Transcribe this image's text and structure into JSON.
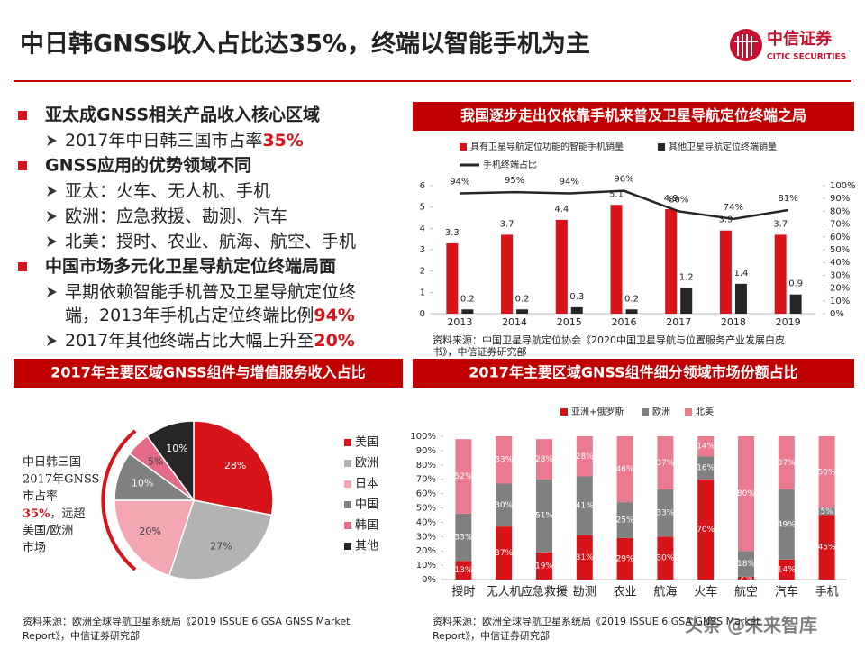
{
  "header": {
    "title": "中日韩GNSS收入占比达35%，终端以智能手机为主",
    "logo_name": "中信证券",
    "logo_en": "CITIC SECURITIES"
  },
  "bullets": [
    {
      "text": "亚太成GNSS相关产品收入核心区域",
      "sub": [
        {
          "lines": [
            "2017年中日韩三国市占率"
          ],
          "highlight": "35%"
        }
      ]
    },
    {
      "text": "GNSS应用的优势领域不同",
      "sub": [
        {
          "lines": [
            "亚太：火车、无人机、手机"
          ]
        },
        {
          "lines": [
            "欧洲：应急救援、勘测、汽车"
          ]
        },
        {
          "lines": [
            "北美：授时、农业、航海、航空、手机"
          ]
        }
      ]
    },
    {
      "text": "中国市场多元化卫星导航定位终端局面",
      "sub": [
        {
          "lines": [
            "早期依赖智能手机普及卫星导航定位终",
            "端，2013年手机占定位终端比例"
          ],
          "highlight": "94%"
        },
        {
          "lines": [
            "2017年其他终端占比大幅上升至"
          ],
          "highlight": "20%"
        }
      ]
    }
  ],
  "chart_data": [
    {
      "type": "bar",
      "title": "我国逐步走出仅依靠手机来普及卫星导航定位终端之局",
      "categories": [
        "2013",
        "2014",
        "2015",
        "2016",
        "2017",
        "2018",
        "2019"
      ],
      "series": [
        {
          "name": "具有卫星导航定位功能的智能手机销量",
          "color": "#d7141a",
          "values": [
            3.3,
            3.7,
            4.4,
            5.1,
            4.9,
            3.9,
            3.7
          ]
        },
        {
          "name": "其他卫星导航定位终端销量",
          "color": "#262626",
          "values": [
            0.2,
            0.2,
            0.3,
            0.2,
            1.2,
            1.4,
            0.9
          ]
        },
        {
          "name": "手机终端占比",
          "color": "#262626",
          "type": "line",
          "axis": "y2",
          "values": [
            94,
            95,
            94,
            96,
            80,
            74,
            81
          ],
          "value_labels": [
            "94%",
            "95%",
            "94%",
            "96%",
            "80%",
            "74%",
            "81%"
          ]
        }
      ],
      "ylim": [
        0,
        6
      ],
      "yticks": [
        0,
        1,
        2,
        3,
        4,
        5,
        6
      ],
      "y2lim": [
        0,
        100
      ],
      "y2ticks": [
        {
          "value": 0,
          "label": "0%"
        },
        {
          "value": 10,
          "label": "10%"
        },
        {
          "value": 20,
          "label": "20%"
        },
        {
          "value": 30,
          "label": "30%"
        },
        {
          "value": 40,
          "label": "40%"
        },
        {
          "value": 50,
          "label": "50%"
        },
        {
          "value": 60,
          "label": "60%"
        },
        {
          "value": 70,
          "label": "70%"
        },
        {
          "value": 80,
          "label": "80%"
        },
        {
          "value": 90,
          "label": "90%"
        },
        {
          "value": 100,
          "label": "100%"
        }
      ],
      "grid": false,
      "source": [
        "资料来源：中国卫星导航定位协会《2020中国卫星导航与位置服务产业发展白皮",
        "书》，中信证券研究部"
      ]
    },
    {
      "type": "pie",
      "title": "2017年主要区域GNSS组件与增值服务收入占比",
      "categories": [
        "美国",
        "欧洲",
        "日本",
        "中国",
        "韩国",
        "其他"
      ],
      "values": [
        28,
        27,
        20,
        10,
        5,
        10
      ],
      "value_labels": [
        "28%",
        "27%",
        "20%",
        "10%",
        "5%",
        "10%"
      ],
      "colors": [
        "#d7141a",
        "#b3b3b3",
        "#f4a6b2",
        "#808080",
        "#e56b86",
        "#262626"
      ],
      "annotation": {
        "lines": [
          "中日韩三国",
          "2017年GNSS",
          "市占率"
        ],
        "highlight": "35%",
        "rest": "，远超",
        "tail": [
          "美国/欧洲",
          "市场"
        ]
      },
      "source": [
        "资料来源：欧洲全球导航卫星系统局《2019 ISSUE 6 GSA GNSS Market",
        "Report》，中信证券研究部"
      ]
    },
    {
      "type": "bar",
      "stacked": true,
      "title": "2017年主要区域GNSS组件细分领域市场份额占比",
      "categories": [
        "授时",
        "无人机",
        "应急救援",
        "勘测",
        "农业",
        "航海",
        "火车",
        "航空",
        "汽车",
        "手机"
      ],
      "series": [
        {
          "name": "亚洲+俄罗斯",
          "color": "#d7141a",
          "values": [
            13,
            37,
            19,
            31,
            29,
            30,
            70,
            2,
            14,
            45
          ],
          "value_labels": [
            "13%",
            "37%",
            "19%",
            "31%",
            "29%",
            "30%",
            "70%",
            "2%",
            "14%",
            "45%"
          ]
        },
        {
          "name": "欧洲",
          "color": "#808080",
          "values": [
            33,
            30,
            51,
            41,
            25,
            33,
            16,
            18,
            49,
            5
          ],
          "value_labels": [
            "33%",
            "30%",
            "51%",
            "41%",
            "25%",
            "33%",
            "16%",
            "18%",
            "49%",
            "5%"
          ]
        },
        {
          "name": "北美",
          "color": "#ea7a8e",
          "values": [
            52,
            33,
            28,
            28,
            46,
            37,
            14,
            80,
            37,
            50
          ],
          "value_labels": [
            "52%",
            "33%",
            "28%",
            "28%",
            "46%",
            "37%",
            "14%",
            "80%",
            "37%",
            "50%"
          ]
        }
      ],
      "ylim": [
        0,
        100
      ],
      "yticks": [
        {
          "value": 0,
          "label": "0%"
        },
        {
          "value": 10,
          "label": "10%"
        },
        {
          "value": 20,
          "label": "20%"
        },
        {
          "value": 30,
          "label": "30%"
        },
        {
          "value": 40,
          "label": "40%"
        },
        {
          "value": 50,
          "label": "50%"
        },
        {
          "value": 60,
          "label": "60%"
        },
        {
          "value": 70,
          "label": "70%"
        },
        {
          "value": 80,
          "label": "80%"
        },
        {
          "value": 90,
          "label": "90%"
        },
        {
          "value": 100,
          "label": "100%"
        }
      ],
      "grid": false,
      "source": [
        "资料来源：欧洲全球导航卫星系统局《2019 ISSUE 6 GSA GNSS Market",
        "Report》，中信证券研究部"
      ]
    }
  ],
  "watermark": "头条 @未来智库"
}
